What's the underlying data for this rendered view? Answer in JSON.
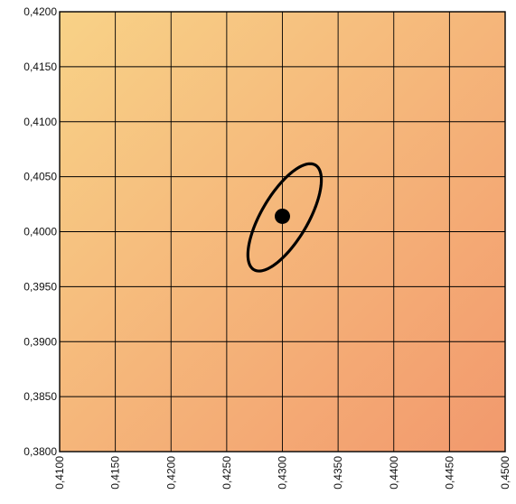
{
  "chart_data": {
    "type": "scatter",
    "title": "",
    "xlabel": "",
    "ylabel": "",
    "xlim": [
      0.41,
      0.45
    ],
    "ylim": [
      0.38,
      0.42
    ],
    "grid": true,
    "x_ticks": [
      {
        "value": 0.41,
        "label": "0,4100"
      },
      {
        "value": 0.415,
        "label": "0,4150"
      },
      {
        "value": 0.42,
        "label": "0,4200"
      },
      {
        "value": 0.425,
        "label": "0,4250"
      },
      {
        "value": 0.43,
        "label": "0,4300"
      },
      {
        "value": 0.435,
        "label": "0,4350"
      },
      {
        "value": 0.44,
        "label": "0,4400"
      },
      {
        "value": 0.445,
        "label": "0,4450"
      },
      {
        "value": 0.45,
        "label": "0,4500"
      }
    ],
    "y_ticks": [
      {
        "value": 0.38,
        "label": "0,3800"
      },
      {
        "value": 0.385,
        "label": "0,3850"
      },
      {
        "value": 0.39,
        "label": "0,3900"
      },
      {
        "value": 0.395,
        "label": "0,3950"
      },
      {
        "value": 0.4,
        "label": "0,4000"
      },
      {
        "value": 0.405,
        "label": "0,4050"
      },
      {
        "value": 0.41,
        "label": "0,4100"
      },
      {
        "value": 0.415,
        "label": "0,4150"
      },
      {
        "value": 0.42,
        "label": "0,4200"
      }
    ],
    "points": [
      {
        "x": 0.43,
        "y": 0.4014
      }
    ],
    "ellipse": {
      "center_x": 0.4302,
      "center_y": 0.4013,
      "semi_major": 0.0055,
      "semi_minor": 0.0021,
      "angle_deg": 60
    },
    "background_gradient": {
      "from": "#f8d287",
      "to": "#f2996d"
    },
    "point_color": "#000000",
    "line_color": "#000000"
  }
}
